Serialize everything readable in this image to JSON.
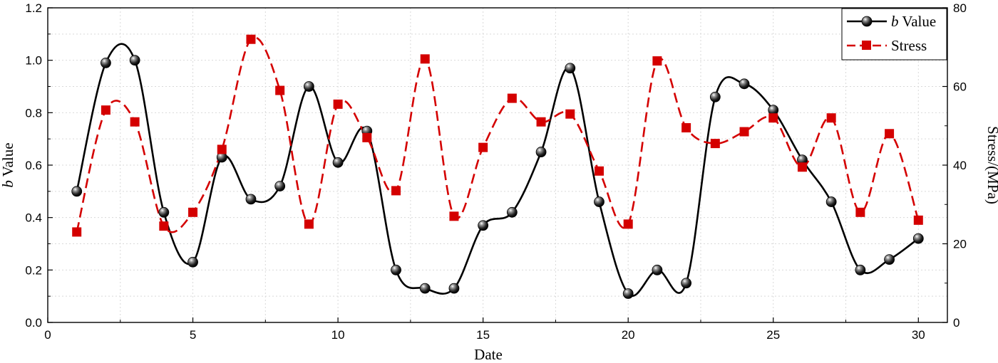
{
  "chart_data": {
    "type": "line",
    "xlabel": "Date",
    "ylabel_left_italic": "b",
    "ylabel_left_rest": " Value",
    "ylabel_right": "Stress/(MPa)",
    "xlim": [
      0,
      31
    ],
    "ylim_left": [
      0.0,
      1.2
    ],
    "ylim_right": [
      0,
      80
    ],
    "x_ticks": [
      0,
      5,
      10,
      15,
      20,
      25,
      30
    ],
    "y_left_ticks": [
      0.0,
      0.2,
      0.4,
      0.6,
      0.8,
      1.0,
      1.2
    ],
    "y_left_tick_labels": [
      "0.0",
      "0.2",
      "0.4",
      "0.6",
      "0.8",
      "1.0",
      "1.2"
    ],
    "y_right_ticks": [
      0,
      20,
      40,
      60,
      80
    ],
    "grid": true,
    "legend_position": "top-right",
    "x": [
      1,
      2,
      3,
      4,
      5,
      6,
      7,
      8,
      9,
      10,
      11,
      12,
      13,
      14,
      15,
      16,
      17,
      18,
      19,
      20,
      21,
      22,
      23,
      24,
      25,
      26,
      27,
      28,
      29,
      30
    ],
    "series": [
      {
        "name_italic": "b",
        "name_rest": " Value",
        "axis": "left",
        "color": "#000000",
        "marker": "sphere",
        "line": "solid",
        "values": [
          0.5,
          0.99,
          1.0,
          0.42,
          0.23,
          0.63,
          0.47,
          0.52,
          0.9,
          0.61,
          0.73,
          0.2,
          0.13,
          0.13,
          0.37,
          0.42,
          0.65,
          0.97,
          0.46,
          0.11,
          0.2,
          0.15,
          0.86,
          0.91,
          0.81,
          0.62,
          0.46,
          0.2,
          0.24,
          0.32
        ]
      },
      {
        "name": "Stress",
        "axis": "right",
        "color": "#d40000",
        "marker": "square",
        "line": "dashed",
        "values": [
          23,
          54,
          51,
          24.5,
          28,
          44,
          72,
          59,
          25,
          55.5,
          47,
          33.5,
          67,
          27,
          44.5,
          57,
          51,
          53,
          38.5,
          25,
          66.5,
          49.5,
          45.5,
          48.5,
          52,
          39.5,
          52,
          28,
          48,
          26
        ]
      }
    ]
  }
}
